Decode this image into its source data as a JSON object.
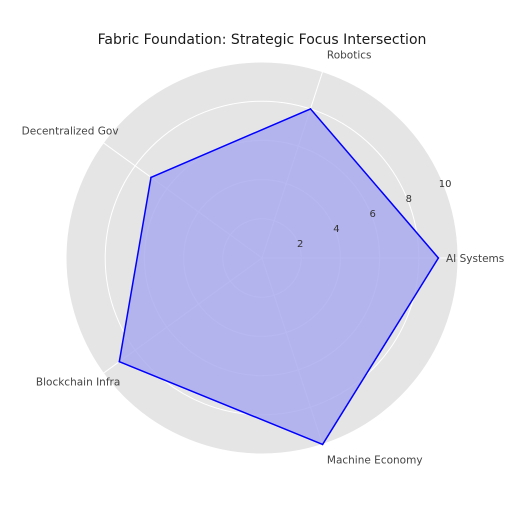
{
  "chart_data": {
    "type": "radar",
    "title": "Fabric Foundation: Strategic Focus Intersection",
    "axes": [
      "AI Systems",
      "Robotics",
      "Decentralized Gov",
      "Blockchain Infra",
      "Machine Economy"
    ],
    "series": [
      {
        "values": [
          9.0,
          8.0,
          7.0,
          9.0,
          10.0
        ]
      }
    ],
    "r_ticks": [
      2,
      4,
      6,
      8,
      10
    ],
    "rlim": [
      0,
      10
    ],
    "grid": true,
    "colors": {
      "line": "#0000ff",
      "fill": "#aaaaee",
      "background": "#e5e5e5",
      "grid": "#ffffff"
    }
  }
}
